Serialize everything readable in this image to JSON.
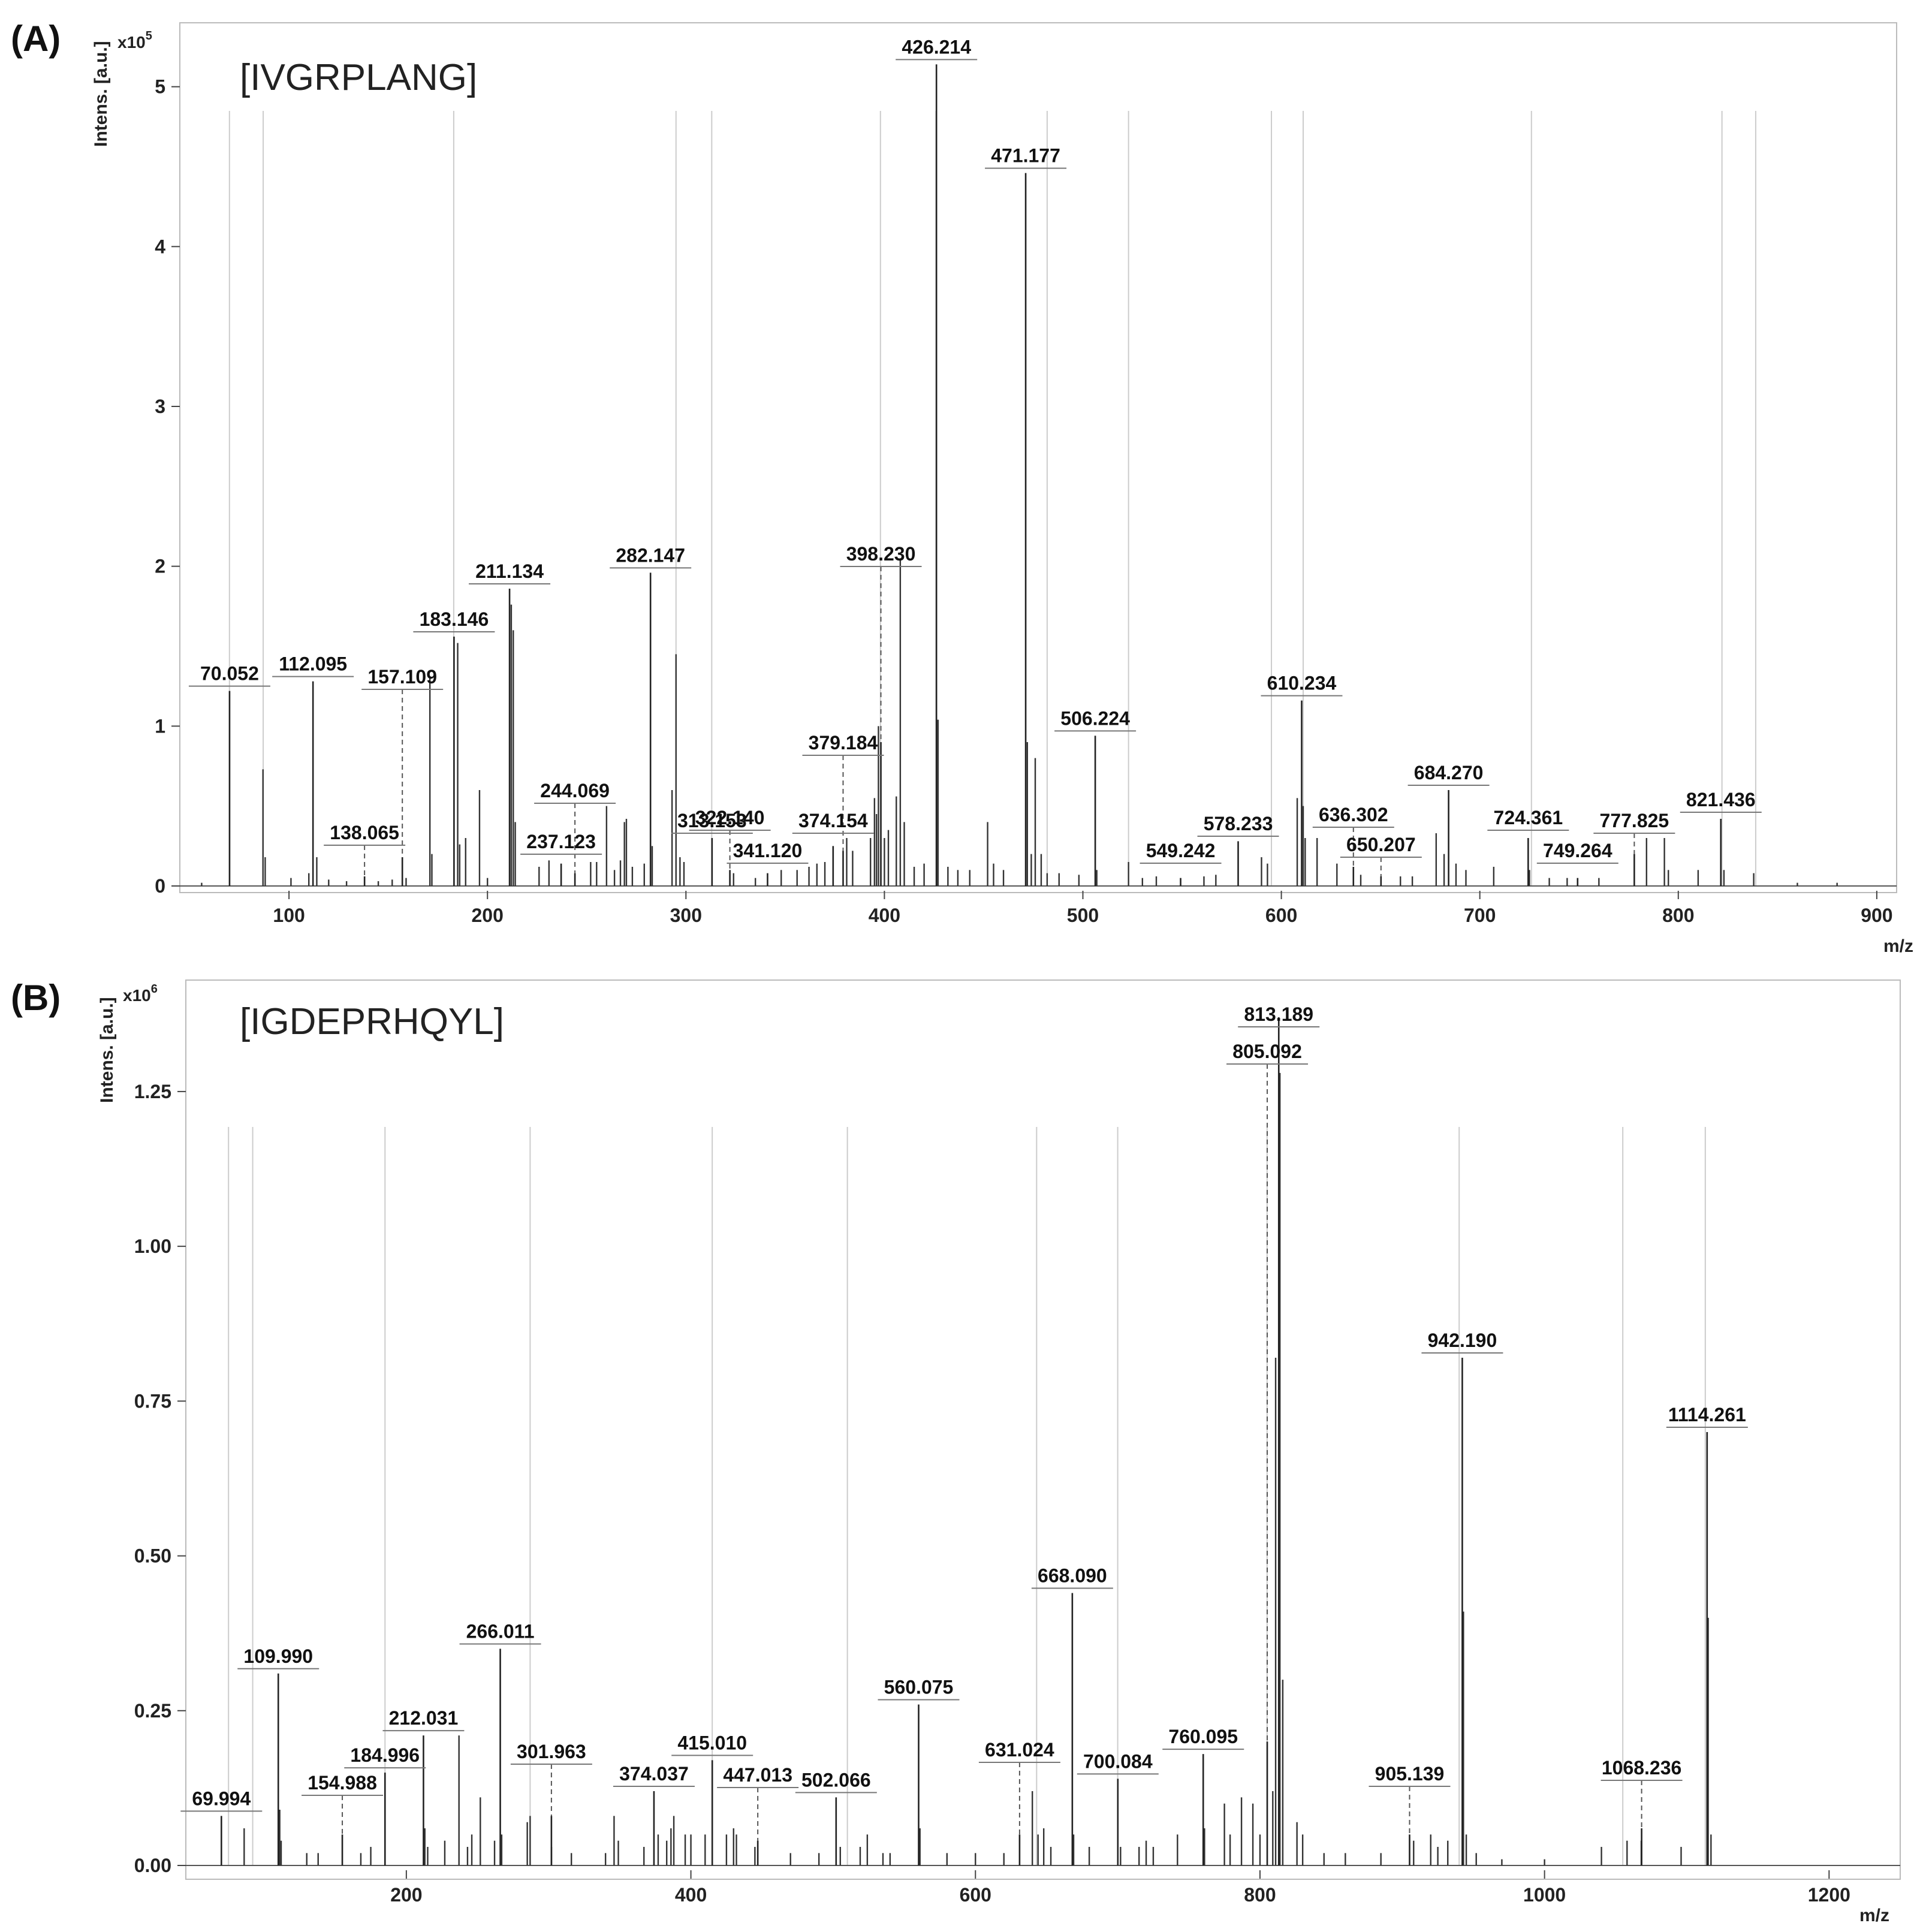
{
  "chart_data": [
    {
      "type": "line",
      "panel": "(A)",
      "title": "[IVGRPLANG]",
      "ylabel": "Intens. [a.u.]",
      "yexp_base": "x10",
      "yexp": "5",
      "xlabel": "m/z",
      "xlim": [
        45,
        910
      ],
      "ylim": [
        0,
        5.4
      ],
      "xticks": [
        100,
        200,
        300,
        400,
        500,
        600,
        700,
        800,
        900
      ],
      "yticks": [
        0,
        1,
        2,
        3,
        4,
        5
      ],
      "grid": false,
      "ref_lines": [
        70,
        87,
        183,
        295,
        313,
        398,
        426,
        482,
        523,
        595,
        611,
        726,
        822,
        839
      ],
      "labeled_peaks": [
        {
          "label": "70.052",
          "x": 70.052,
          "y": 1.22
        },
        {
          "label": "112.095",
          "x": 112.095,
          "y": 1.28
        },
        {
          "label": "157.109",
          "x": 157.109,
          "y": 0.18
        },
        {
          "label": "138.065",
          "x": 138.065,
          "y": 0.06
        },
        {
          "label": "183.146",
          "x": 183.146,
          "y": 1.56
        },
        {
          "label": "211.134",
          "x": 211.134,
          "y": 1.86
        },
        {
          "label": "237.123",
          "x": 237.123,
          "y": 0.14
        },
        {
          "label": "244.069",
          "x": 244.069,
          "y": 0.08
        },
        {
          "label": "282.147",
          "x": 282.147,
          "y": 1.96
        },
        {
          "label": "313.153",
          "x": 313.153,
          "y": 0.3
        },
        {
          "label": "322.140",
          "x": 322.14,
          "y": 0.1
        },
        {
          "label": "341.120",
          "x": 341.12,
          "y": 0.08
        },
        {
          "label": "374.154",
          "x": 374.154,
          "y": 0.25
        },
        {
          "label": "379.184",
          "x": 379.184,
          "y": 0.22
        },
        {
          "label": "398.230",
          "x": 398.23,
          "y": 0.9
        },
        {
          "label": "426.214",
          "x": 426.214,
          "y": 5.14
        },
        {
          "label": "471.177",
          "x": 471.177,
          "y": 4.46
        },
        {
          "label": "506.224",
          "x": 506.224,
          "y": 0.94
        },
        {
          "label": "549.242",
          "x": 549.242,
          "y": 0.05
        },
        {
          "label": "578.233",
          "x": 578.233,
          "y": 0.28
        },
        {
          "label": "610.234",
          "x": 610.234,
          "y": 1.16
        },
        {
          "label": "636.302",
          "x": 636.302,
          "y": 0.12
        },
        {
          "label": "650.207",
          "x": 650.207,
          "y": 0.06
        },
        {
          "label": "684.270",
          "x": 684.27,
          "y": 0.6
        },
        {
          "label": "724.361",
          "x": 724.361,
          "y": 0.3
        },
        {
          "label": "749.264",
          "x": 749.264,
          "y": 0.05
        },
        {
          "label": "777.825",
          "x": 777.825,
          "y": 0.2
        },
        {
          "label": "821.436",
          "x": 821.436,
          "y": 0.42
        }
      ],
      "other_peaks": [
        [
          56,
          0.02
        ],
        [
          86.9,
          0.73
        ],
        [
          88,
          0.18
        ],
        [
          101,
          0.05
        ],
        [
          110,
          0.08
        ],
        [
          114,
          0.18
        ],
        [
          120,
          0.04
        ],
        [
          129,
          0.03
        ],
        [
          145,
          0.03
        ],
        [
          152,
          0.04
        ],
        [
          159,
          0.05
        ],
        [
          171,
          1.3
        ],
        [
          172,
          0.2
        ],
        [
          185,
          1.52
        ],
        [
          186,
          0.26
        ],
        [
          189,
          0.3
        ],
        [
          196,
          0.6
        ],
        [
          200,
          0.05
        ],
        [
          212,
          1.76
        ],
        [
          213,
          1.6
        ],
        [
          214,
          0.4
        ],
        [
          226,
          0.12
        ],
        [
          231,
          0.16
        ],
        [
          252,
          0.15
        ],
        [
          255,
          0.15
        ],
        [
          260,
          0.5
        ],
        [
          264,
          0.1
        ],
        [
          267,
          0.16
        ],
        [
          269,
          0.4
        ],
        [
          270,
          0.42
        ],
        [
          273,
          0.12
        ],
        [
          279,
          0.14
        ],
        [
          283,
          0.25
        ],
        [
          293,
          0.6
        ],
        [
          295,
          1.45
        ],
        [
          297,
          0.18
        ],
        [
          299,
          0.15
        ],
        [
          324,
          0.08
        ],
        [
          335,
          0.05
        ],
        [
          348,
          0.1
        ],
        [
          356,
          0.1
        ],
        [
          362,
          0.12
        ],
        [
          366,
          0.14
        ],
        [
          370,
          0.15
        ],
        [
          381,
          0.3
        ],
        [
          384,
          0.22
        ],
        [
          393,
          0.3
        ],
        [
          395,
          0.55
        ],
        [
          396,
          0.45
        ],
        [
          397,
          1.0
        ],
        [
          400,
          0.3
        ],
        [
          402,
          0.35
        ],
        [
          406,
          0.56
        ],
        [
          408,
          2.05
        ],
        [
          410,
          0.4
        ],
        [
          415,
          0.12
        ],
        [
          420,
          0.14
        ],
        [
          427,
          1.04
        ],
        [
          432,
          0.12
        ],
        [
          437,
          0.1
        ],
        [
          443,
          0.1
        ],
        [
          452,
          0.4
        ],
        [
          455,
          0.14
        ],
        [
          460,
          0.1
        ],
        [
          472,
          0.9
        ],
        [
          474,
          0.2
        ],
        [
          476,
          0.8
        ],
        [
          479,
          0.2
        ],
        [
          482,
          0.08
        ],
        [
          488,
          0.08
        ],
        [
          498,
          0.07
        ],
        [
          507,
          0.1
        ],
        [
          523,
          0.15
        ],
        [
          530,
          0.05
        ],
        [
          537,
          0.06
        ],
        [
          561,
          0.06
        ],
        [
          567,
          0.07
        ],
        [
          590,
          0.18
        ],
        [
          593,
          0.14
        ],
        [
          608,
          0.55
        ],
        [
          611,
          0.5
        ],
        [
          612,
          0.3
        ],
        [
          618,
          0.3
        ],
        [
          628,
          0.14
        ],
        [
          640,
          0.07
        ],
        [
          660,
          0.06
        ],
        [
          666,
          0.06
        ],
        [
          678,
          0.33
        ],
        [
          682,
          0.2
        ],
        [
          688,
          0.14
        ],
        [
          693,
          0.1
        ],
        [
          707,
          0.12
        ],
        [
          725,
          0.1
        ],
        [
          735,
          0.05
        ],
        [
          744,
          0.05
        ],
        [
          760,
          0.05
        ],
        [
          784,
          0.3
        ],
        [
          793,
          0.3
        ],
        [
          795,
          0.1
        ],
        [
          810,
          0.1
        ],
        [
          823,
          0.1
        ],
        [
          838,
          0.08
        ],
        [
          860,
          0.02
        ],
        [
          880,
          0.02
        ]
      ]
    },
    {
      "type": "line",
      "panel": "(B)",
      "title": "[IGDEPRHQYL]",
      "ylabel": "Intens. [a.u.]",
      "yexp_base": "x10",
      "yexp": "6",
      "xlabel": "m/z",
      "xlim": [
        45,
        1250
      ],
      "ylim": [
        0,
        1.43
      ],
      "xticks": [
        200,
        400,
        600,
        800,
        1000,
        1200
      ],
      "yticks": [
        "0.00",
        "0.25",
        "0.50",
        "0.75",
        "1.00",
        "1.25"
      ],
      "grid": false,
      "ref_lines": [
        75,
        92,
        185,
        287,
        415,
        510,
        643,
        700,
        805,
        940,
        1055,
        1113
      ],
      "labeled_peaks": [
        {
          "label": "69.994",
          "x": 69.994,
          "y": 0.08
        },
        {
          "label": "109.990",
          "x": 109.99,
          "y": 0.31
        },
        {
          "label": "154.988",
          "x": 154.988,
          "y": 0.05
        },
        {
          "label": "184.996",
          "x": 184.996,
          "y": 0.15
        },
        {
          "label": "212.031",
          "x": 212.031,
          "y": 0.21
        },
        {
          "label": "266.011",
          "x": 266.011,
          "y": 0.35
        },
        {
          "label": "301.963",
          "x": 301.963,
          "y": 0.08
        },
        {
          "label": "374.037",
          "x": 374.037,
          "y": 0.12
        },
        {
          "label": "415.010",
          "x": 415.01,
          "y": 0.17
        },
        {
          "label": "447.013",
          "x": 447.013,
          "y": 0.04
        },
        {
          "label": "502.066",
          "x": 502.066,
          "y": 0.11
        },
        {
          "label": "560.075",
          "x": 560.075,
          "y": 0.26
        },
        {
          "label": "631.024",
          "x": 631.024,
          "y": 0.05
        },
        {
          "label": "668.090",
          "x": 668.09,
          "y": 0.44
        },
        {
          "label": "700.084",
          "x": 700.084,
          "y": 0.14
        },
        {
          "label": "760.095",
          "x": 760.095,
          "y": 0.18
        },
        {
          "label": "805.092",
          "x": 805.092,
          "y": 0.2
        },
        {
          "label": "813.189",
          "x": 813.189,
          "y": 1.37
        },
        {
          "label": "905.139",
          "x": 905.139,
          "y": 0.05
        },
        {
          "label": "942.190",
          "x": 942.19,
          "y": 0.82
        },
        {
          "label": "1068.236",
          "x": 1068.236,
          "y": 0.06
        },
        {
          "label": "1114.261",
          "x": 1114.261,
          "y": 0.7
        }
      ],
      "other_peaks": [
        [
          86,
          0.06
        ],
        [
          111,
          0.09
        ],
        [
          112,
          0.04
        ],
        [
          130,
          0.02
        ],
        [
          138,
          0.02
        ],
        [
          168,
          0.02
        ],
        [
          175,
          0.03
        ],
        [
          213,
          0.06
        ],
        [
          215,
          0.03
        ],
        [
          227,
          0.04
        ],
        [
          237,
          0.21
        ],
        [
          243,
          0.03
        ],
        [
          246,
          0.05
        ],
        [
          252,
          0.11
        ],
        [
          262,
          0.04
        ],
        [
          267,
          0.05
        ],
        [
          285,
          0.07
        ],
        [
          287,
          0.08
        ],
        [
          302,
          0.03
        ],
        [
          316,
          0.02
        ],
        [
          340,
          0.02
        ],
        [
          346,
          0.08
        ],
        [
          349,
          0.04
        ],
        [
          367,
          0.03
        ],
        [
          377,
          0.05
        ],
        [
          383,
          0.04
        ],
        [
          386,
          0.06
        ],
        [
          388,
          0.08
        ],
        [
          396,
          0.05
        ],
        [
          400,
          0.05
        ],
        [
          410,
          0.05
        ],
        [
          425,
          0.05
        ],
        [
          430,
          0.06
        ],
        [
          432,
          0.05
        ],
        [
          445,
          0.03
        ],
        [
          470,
          0.02
        ],
        [
          490,
          0.02
        ],
        [
          505,
          0.03
        ],
        [
          519,
          0.03
        ],
        [
          524,
          0.05
        ],
        [
          535,
          0.02
        ],
        [
          540,
          0.02
        ],
        [
          561,
          0.06
        ],
        [
          580,
          0.02
        ],
        [
          600,
          0.02
        ],
        [
          620,
          0.02
        ],
        [
          640,
          0.12
        ],
        [
          644,
          0.05
        ],
        [
          648,
          0.06
        ],
        [
          653,
          0.03
        ],
        [
          669,
          0.05
        ],
        [
          680,
          0.03
        ],
        [
          702,
          0.03
        ],
        [
          715,
          0.03
        ],
        [
          720,
          0.04
        ],
        [
          725,
          0.03
        ],
        [
          742,
          0.05
        ],
        [
          761,
          0.06
        ],
        [
          775,
          0.1
        ],
        [
          779,
          0.05
        ],
        [
          787,
          0.11
        ],
        [
          795,
          0.1
        ],
        [
          800,
          0.05
        ],
        [
          809,
          0.12
        ],
        [
          811,
          0.82
        ],
        [
          814,
          1.28
        ],
        [
          816,
          0.3
        ],
        [
          826,
          0.07
        ],
        [
          830,
          0.05
        ],
        [
          845,
          0.02
        ],
        [
          860,
          0.02
        ],
        [
          885,
          0.02
        ],
        [
          908,
          0.04
        ],
        [
          920,
          0.05
        ],
        [
          925,
          0.03
        ],
        [
          932,
          0.04
        ],
        [
          943,
          0.41
        ],
        [
          945,
          0.05
        ],
        [
          952,
          0.02
        ],
        [
          970,
          0.01
        ],
        [
          1000,
          0.01
        ],
        [
          1040,
          0.03
        ],
        [
          1058,
          0.04
        ],
        [
          1068,
          0.04
        ],
        [
          1096,
          0.03
        ],
        [
          1115,
          0.4
        ],
        [
          1117,
          0.05
        ]
      ]
    }
  ]
}
